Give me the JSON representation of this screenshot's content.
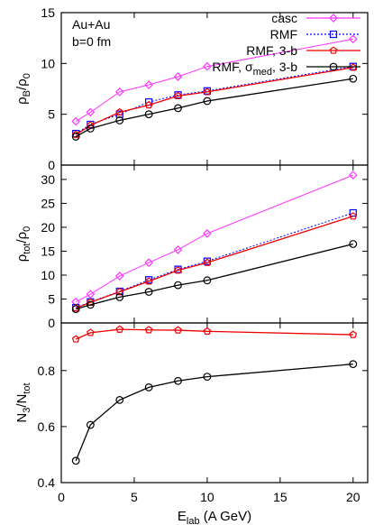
{
  "chart_data": {
    "type": "line",
    "annotation": [
      "Au+Au",
      "b=0 fm"
    ],
    "x": [
      1,
      2,
      4,
      6,
      8,
      10,
      20
    ],
    "xlabel": {
      "main": "E",
      "sub": "lab",
      "rest": " (A GeV)"
    },
    "xlim": [
      0,
      21
    ],
    "xticks": [
      "0",
      "5",
      "10",
      "15",
      "20"
    ],
    "grid": false,
    "legend_position": "top-right",
    "colors": {
      "casc": "#ff33ff",
      "rmf": "#0000ff",
      "rmf3b": "#ee0000",
      "rmfmed": "#000000"
    },
    "legend": [
      {
        "series": "casc",
        "label": "casc"
      },
      {
        "series": "rmf",
        "label": "RMF"
      },
      {
        "series": "rmf3b",
        "label": "RMF, 3-b"
      },
      {
        "series": "rmfmed",
        "label_parts": [
          "RMF, ",
          "σ",
          "med",
          ", 3-b"
        ]
      }
    ],
    "panels": [
      {
        "id": "rhoB",
        "ylabel": {
          "main": "ρ",
          "sub": "B",
          "rest": "/ρ",
          "sub2": "0"
        },
        "ylim": [
          0,
          15
        ],
        "yticks": [
          "0",
          "5",
          "10",
          "15"
        ],
        "series": [
          {
            "key": "casc",
            "values": [
              4.3,
              5.2,
              7.2,
              7.9,
              8.7,
              9.7,
              12.4
            ]
          },
          {
            "key": "rmf",
            "values": [
              3.1,
              4.0,
              5.0,
              6.2,
              6.9,
              7.3,
              9.7
            ]
          },
          {
            "key": "rmf3b",
            "values": [
              3.0,
              3.9,
              5.2,
              5.9,
              6.8,
              7.2,
              9.6
            ]
          },
          {
            "key": "rmfmed",
            "values": [
              2.8,
              3.6,
              4.4,
              5.0,
              5.6,
              6.3,
              8.5
            ]
          }
        ]
      },
      {
        "id": "rhoTot",
        "ylabel": {
          "main": "ρ",
          "sub": "tot",
          "rest": "/ρ",
          "sub2": "0"
        },
        "ylim": [
          0,
          33
        ],
        "yticks": [
          "0",
          "5",
          "10",
          "15",
          "20",
          "25",
          "30"
        ],
        "series": [
          {
            "key": "casc",
            "values": [
              4.4,
              6.0,
              9.8,
              12.6,
              15.3,
              18.7,
              30.9
            ]
          },
          {
            "key": "rmf",
            "values": [
              3.2,
              4.4,
              6.6,
              9.0,
              11.2,
              12.9,
              23.0
            ]
          },
          {
            "key": "rmf3b",
            "values": [
              3.1,
              4.3,
              6.5,
              8.7,
              11.0,
              12.6,
              22.3
            ]
          },
          {
            "key": "rmfmed",
            "values": [
              2.9,
              3.8,
              5.4,
              6.5,
              7.9,
              8.9,
              16.5
            ]
          }
        ]
      },
      {
        "id": "n3ratio",
        "ylabel": {
          "main": "N",
          "sub": "3",
          "rest": "/N",
          "sub2": "tot"
        },
        "ylim": [
          0.4,
          0.97
        ],
        "yticks": [
          "0.4",
          "0.6",
          "0.8"
        ],
        "series": [
          {
            "key": "rmf3b",
            "values": [
              0.912,
              0.935,
              0.947,
              0.945,
              0.944,
              0.94,
              0.928
            ]
          },
          {
            "key": "rmfmed",
            "values": [
              0.478,
              0.606,
              0.695,
              0.74,
              0.763,
              0.778,
              0.823
            ]
          }
        ]
      }
    ]
  }
}
